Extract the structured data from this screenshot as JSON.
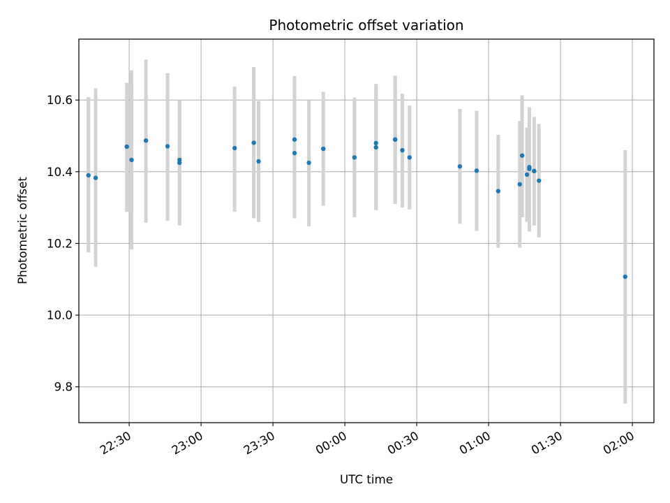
{
  "chart_data": {
    "type": "scatter",
    "title": "Photometric offset variation",
    "xlabel": "UTC time",
    "ylabel": "Photometric offset",
    "x_tick_labels": [
      "22:30",
      "23:00",
      "23:30",
      "00:00",
      "00:30",
      "01:00",
      "01:30",
      "02:00"
    ],
    "y_tick_labels": [
      "9.8",
      "10.0",
      "10.2",
      "10.4",
      "10.6"
    ],
    "x_range": [
      "22:09",
      "02:09"
    ],
    "ylim": [
      9.7,
      10.77
    ],
    "grid": true,
    "marker_color": "#1f77b4",
    "errorbar_color": "#d3d3d3",
    "points": [
      {
        "time": "22:13",
        "value": 10.39,
        "low": 10.175,
        "high": 10.608
      },
      {
        "time": "22:16",
        "value": 10.383,
        "low": 10.135,
        "high": 10.633
      },
      {
        "time": "22:29",
        "value": 10.47,
        "low": 10.288,
        "high": 10.648
      },
      {
        "time": "22:31",
        "value": 10.433,
        "low": 10.183,
        "high": 10.683
      },
      {
        "time": "22:37",
        "value": 10.487,
        "low": 10.258,
        "high": 10.713
      },
      {
        "time": "22:46",
        "value": 10.471,
        "low": 10.263,
        "high": 10.675
      },
      {
        "time": "22:51",
        "value": 10.425,
        "low": 10.25,
        "high": 10.598
      },
      {
        "time": "22:51",
        "value": 10.433,
        "low": 10.27,
        "high": 10.598
      },
      {
        "time": "23:14",
        "value": 10.466,
        "low": 10.288,
        "high": 10.638
      },
      {
        "time": "23:22",
        "value": 10.481,
        "low": 10.27,
        "high": 10.692
      },
      {
        "time": "23:24",
        "value": 10.429,
        "low": 10.26,
        "high": 10.597
      },
      {
        "time": "23:39",
        "value": 10.452,
        "low": 10.27,
        "high": 10.63
      },
      {
        "time": "23:39",
        "value": 10.49,
        "low": 10.315,
        "high": 10.667
      },
      {
        "time": "23:45",
        "value": 10.425,
        "low": 10.248,
        "high": 10.6
      },
      {
        "time": "23:51",
        "value": 10.464,
        "low": 10.305,
        "high": 10.623
      },
      {
        "time": "00:04",
        "value": 10.44,
        "low": 10.273,
        "high": 10.607
      },
      {
        "time": "00:13",
        "value": 10.48,
        "low": 10.293,
        "high": 10.645
      },
      {
        "time": "00:13",
        "value": 10.468,
        "low": 10.295,
        "high": 10.638
      },
      {
        "time": "00:21",
        "value": 10.49,
        "low": 10.31,
        "high": 10.668
      },
      {
        "time": "00:21",
        "value": 10.49,
        "low": 10.31,
        "high": 10.668
      },
      {
        "time": "00:24",
        "value": 10.46,
        "low": 10.3,
        "high": 10.618
      },
      {
        "time": "00:27",
        "value": 10.44,
        "low": 10.295,
        "high": 10.585
      },
      {
        "time": "00:48",
        "value": 10.415,
        "low": 10.255,
        "high": 10.575
      },
      {
        "time": "00:55",
        "value": 10.403,
        "low": 10.235,
        "high": 10.57
      },
      {
        "time": "01:04",
        "value": 10.346,
        "low": 10.188,
        "high": 10.503
      },
      {
        "time": "01:13",
        "value": 10.365,
        "low": 10.188,
        "high": 10.542
      },
      {
        "time": "01:14",
        "value": 10.445,
        "low": 10.273,
        "high": 10.613
      },
      {
        "time": "01:16",
        "value": 10.392,
        "low": 10.26,
        "high": 10.523
      },
      {
        "time": "01:17",
        "value": 10.413,
        "low": 10.258,
        "high": 10.568
      },
      {
        "time": "01:17",
        "value": 10.408,
        "low": 10.233,
        "high": 10.58
      },
      {
        "time": "01:19",
        "value": 10.402,
        "low": 10.25,
        "high": 10.553
      },
      {
        "time": "01:21",
        "value": 10.375,
        "low": 10.217,
        "high": 10.533
      },
      {
        "time": "01:57",
        "value": 10.107,
        "low": 9.753,
        "high": 10.46
      }
    ]
  }
}
